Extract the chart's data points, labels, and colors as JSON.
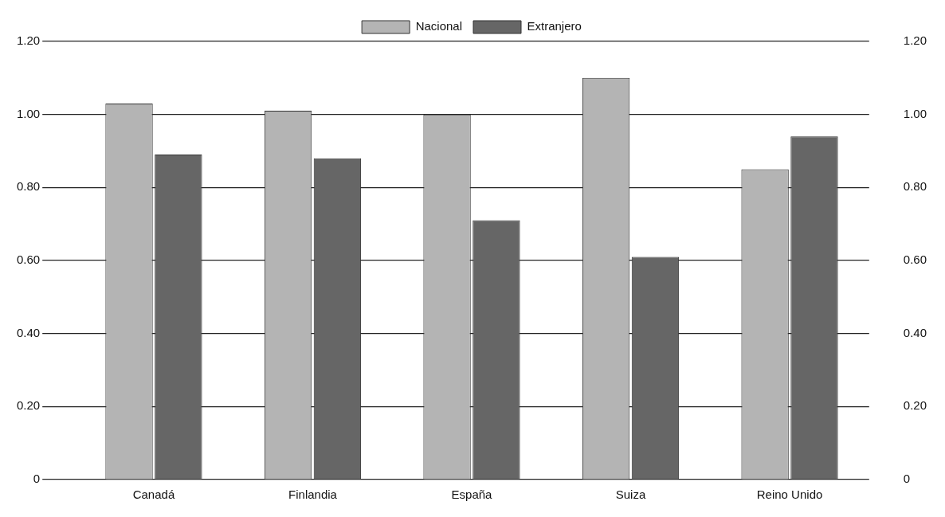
{
  "chart_data": {
    "type": "bar",
    "categories": [
      "Canadá",
      "Finlandia",
      "España",
      "Suiza",
      "Reino Unido"
    ],
    "series": [
      {
        "name": "Nacional",
        "color": "#b4b4b4",
        "values": [
          1.03,
          1.01,
          1.0,
          1.1,
          0.85
        ]
      },
      {
        "name": "Extranjero",
        "color": "#666666",
        "values": [
          0.89,
          0.88,
          0.71,
          0.61,
          0.94
        ]
      }
    ],
    "ylim": [
      0,
      1.2
    ],
    "yticks": [
      0,
      {
        "value": 0.2,
        "label": "0.20"
      },
      {
        "value": 0.4,
        "label": "0.40"
      },
      {
        "value": 0.6,
        "label": "0.60"
      },
      {
        "value": 0.8,
        "label": "0.80"
      },
      {
        "value": 1,
        "label": "1.00"
      },
      {
        "value": 1.2,
        "label": "1.20"
      }
    ],
    "y2lim": [
      0,
      1.2
    ],
    "y2ticks": [
      0,
      {
        "value": 0.2,
        "label": "0.20"
      },
      {
        "value": 0.4,
        "label": "0.40"
      },
      {
        "value": 0.6,
        "label": "0.60"
      },
      {
        "value": 0.8,
        "label": "0.80"
      },
      {
        "value": 1,
        "label": "1.00"
      },
      {
        "value": 1.2,
        "label": "1.20"
      }
    ],
    "grid": "y",
    "legend": "top"
  }
}
